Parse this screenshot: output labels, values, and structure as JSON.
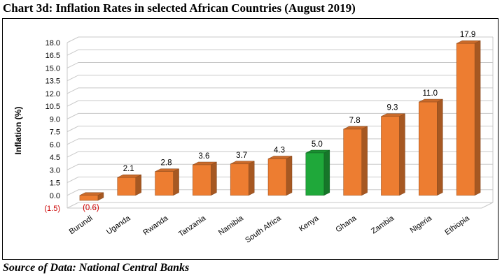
{
  "title": "Chart 3d: Inflation Rates in selected African Countries (August 2019)",
  "source": "Source of Data: National Central Banks",
  "colors": {
    "bar": "#ED7D31",
    "bar_highlight": "#1FA83A",
    "negative_label": "#CC0000"
  },
  "chart_data": {
    "type": "bar",
    "title": "Chart 3d: Inflation Rates in selected African Countries (August 2019)",
    "xlabel": "",
    "ylabel": "Inflation (%)",
    "categories": [
      "Burundi",
      "Uganda",
      "Rwanda",
      "Tanzania",
      "Namibia",
      "South Africa",
      "Kenya",
      "Ghana",
      "Zambia",
      "Nigeria",
      "Ethiopia"
    ],
    "values": [
      -0.6,
      2.1,
      2.8,
      3.6,
      3.7,
      4.3,
      5.0,
      7.8,
      9.3,
      11.0,
      17.9
    ],
    "data_labels": [
      "(0.6)",
      "2.1",
      "2.8",
      "3.6",
      "3.7",
      "4.3",
      "5.0",
      "7.8",
      "9.3",
      "11.0",
      "17.9"
    ],
    "highlight": "Kenya",
    "ylim": [
      -1.5,
      18.0
    ],
    "yticks": [
      -1.5,
      0.0,
      1.5,
      3.0,
      4.5,
      6.0,
      7.5,
      9.0,
      10.5,
      12.0,
      13.5,
      15.0,
      16.5,
      18.0
    ],
    "ytick_labels": [
      "(1.5)",
      "0.0",
      "1.5",
      "3.0",
      "4.5",
      "6.0",
      "7.5",
      "9.0",
      "10.5",
      "12.0",
      "13.5",
      "15.0",
      "16.5",
      "18.0"
    ],
    "grid": true,
    "legend": "none"
  }
}
